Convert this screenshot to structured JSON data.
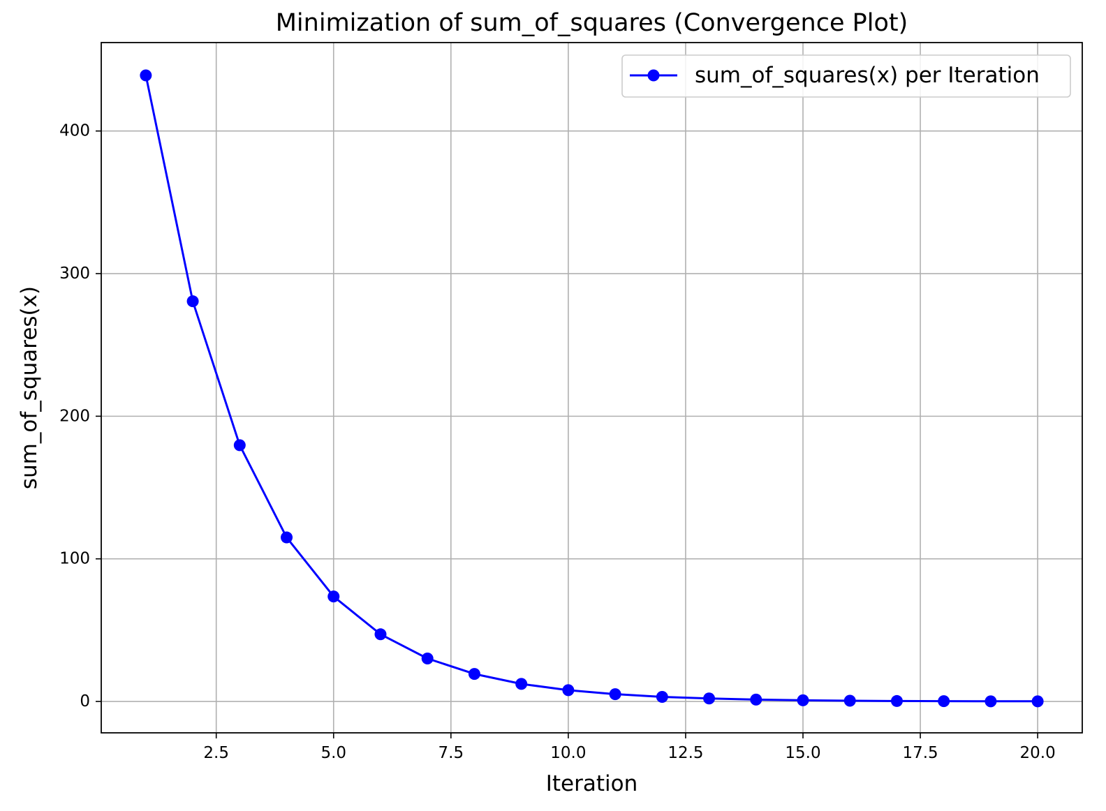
{
  "chart_data": {
    "type": "line",
    "title": "Minimization of sum_of_squares (Convergence Plot)",
    "xlabel": "Iteration",
    "ylabel": "sum_of_squares(x)",
    "xlim": [
      0.05,
      20.95
    ],
    "ylim": [
      -22,
      462
    ],
    "x_ticks": [
      2.5,
      5.0,
      7.5,
      10.0,
      12.5,
      15.0,
      17.5,
      20.0
    ],
    "x_tick_labels": [
      "2.5",
      "5.0",
      "7.5",
      "10.0",
      "12.5",
      "15.0",
      "17.5",
      "20.0"
    ],
    "y_ticks": [
      0,
      100,
      200,
      300,
      400
    ],
    "y_tick_labels": [
      "0",
      "100",
      "200",
      "300",
      "400"
    ],
    "grid": true,
    "legend_position": "top-right",
    "series": [
      {
        "name": "sum_of_squares(x) per Iteration",
        "color": "#0000ff",
        "marker": "circle",
        "x": [
          1,
          2,
          3,
          4,
          5,
          6,
          7,
          8,
          9,
          10,
          11,
          12,
          13,
          14,
          15,
          16,
          17,
          18,
          19,
          20
        ],
        "y": [
          439,
          280.6,
          179.7,
          115,
          73.6,
          47.1,
          30.1,
          19.3,
          12.3,
          7.9,
          5.1,
          3.2,
          2.1,
          1.3,
          0.8,
          0.5,
          0.3,
          0.2,
          0.1,
          0.1
        ]
      }
    ]
  }
}
